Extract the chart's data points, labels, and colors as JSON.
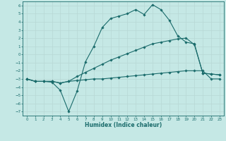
{
  "xlabel": "Humidex (Indice chaleur)",
  "bg_color": "#c5e8e5",
  "line_color": "#1a6b6b",
  "grid_color": "#b8d8d5",
  "xlim": [
    -0.5,
    23.5
  ],
  "ylim": [
    -7.5,
    6.5
  ],
  "yticks": [
    -7,
    -6,
    -5,
    -4,
    -3,
    -2,
    -1,
    0,
    1,
    2,
    3,
    4,
    5,
    6
  ],
  "xticks": [
    0,
    1,
    2,
    3,
    4,
    5,
    6,
    7,
    8,
    9,
    10,
    11,
    12,
    13,
    14,
    15,
    16,
    17,
    18,
    19,
    20,
    21,
    22,
    23
  ],
  "line1_x": [
    0,
    1,
    2,
    3,
    4,
    5,
    6,
    7,
    8,
    9,
    10,
    11,
    12,
    13,
    14,
    15,
    16,
    17,
    18,
    19,
    20,
    21,
    22,
    23
  ],
  "line1_y": [
    -3,
    -3.3,
    -3.3,
    -3.3,
    -3.5,
    -3.3,
    -3.2,
    -3.1,
    -3.0,
    -3.0,
    -2.9,
    -2.8,
    -2.7,
    -2.6,
    -2.5,
    -2.4,
    -2.3,
    -2.2,
    -2.1,
    -2.0,
    -2.0,
    -2.0,
    -3.0,
    -3.0
  ],
  "line2_x": [
    0,
    1,
    2,
    3,
    4,
    5,
    6,
    7,
    8,
    9,
    10,
    11,
    12,
    13,
    14,
    15,
    16,
    17,
    18,
    19,
    20,
    21,
    22,
    23
  ],
  "line2_y": [
    -3,
    -3.3,
    -3.3,
    -3.3,
    -3.5,
    -3.3,
    -2.7,
    -2.2,
    -1.7,
    -1.2,
    -0.7,
    -0.3,
    0.1,
    0.5,
    0.9,
    1.3,
    1.5,
    1.7,
    1.9,
    2.0,
    1.2,
    -2.3,
    -2.4,
    -2.5
  ],
  "line3_x": [
    0,
    1,
    2,
    3,
    4,
    5,
    6,
    7,
    8,
    9,
    10,
    11,
    12,
    13,
    14,
    15,
    16,
    17,
    18,
    19,
    20,
    21,
    22,
    23
  ],
  "line3_y": [
    -3,
    -3.3,
    -3.3,
    -3.4,
    -4.4,
    -7.0,
    -4.5,
    -0.9,
    1.0,
    3.3,
    4.4,
    4.7,
    5.0,
    5.5,
    4.9,
    6.1,
    5.5,
    4.2,
    2.3,
    1.5,
    1.3,
    -2.3,
    -2.4,
    -2.5
  ]
}
